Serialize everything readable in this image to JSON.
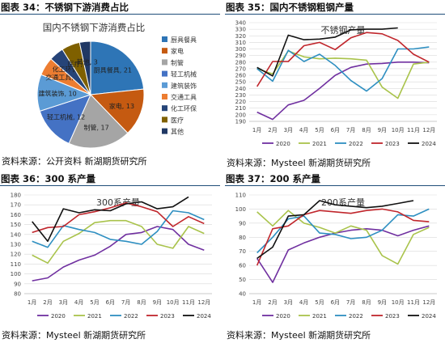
{
  "colors": {
    "c2020": "#7030a0",
    "c2021": "#a9c34b",
    "c2022": "#2e8fc1",
    "c2023": "#c0262c",
    "c2024": "#111111"
  },
  "months": [
    "1月",
    "2月",
    "3月",
    "4月",
    "5月",
    "6月",
    "7月",
    "8月",
    "9月",
    "10月",
    "11月",
    "12月"
  ],
  "panels": [
    {
      "header": "图表 34：不锈钢下游消费占比",
      "source": "资料来源：公开资料   新湖期货研究所"
    },
    {
      "header": "图表 35：国内不锈钢粗钢产量",
      "source": "资料来源：Mysteel 新湖期货研究所"
    },
    {
      "header": "图表 36：300 系产量",
      "source": "资料来源：Mysteel 新湖期货研究所"
    },
    {
      "header": "图表 37：200 系产量",
      "source": "资料来源：Mysteel 新湖期货研究所"
    }
  ],
  "chart_data": [
    {
      "type": "pie",
      "title": "国内不锈钢下游消费占比",
      "slices": [
        {
          "name": "厨具餐具",
          "value": 21,
          "color": "#2e75b6"
        },
        {
          "name": "家电",
          "value": 13,
          "color": "#c55a11"
        },
        {
          "name": "制管",
          "value": 17,
          "color": "#a5a5a5"
        },
        {
          "name": "轻工机械",
          "value": 12,
          "color": "#4472c4"
        },
        {
          "name": "建筑装饰",
          "value": 10,
          "color": "#5b9bd5"
        },
        {
          "name": "交通工具",
          "value": 5,
          "color": "#ed7d31"
        },
        {
          "name": "化工环保",
          "value": 4,
          "color": "#264478"
        },
        {
          "name": "医疗",
          "value": 5,
          "color": "#7f6000"
        },
        {
          "name": "其他",
          "value": 3,
          "color": "#203864"
        }
      ],
      "legend": [
        "厨具餐具",
        "家电",
        "制管",
        "轻工机械",
        "建筑装饰",
        "交通工具",
        "化工环保",
        "医疗",
        "其他"
      ],
      "legend_position": "right"
    },
    {
      "type": "line",
      "title": "不锈钢产量",
      "ylim": [
        190,
        340
      ],
      "yticks": [
        190,
        200,
        210,
        220,
        230,
        240,
        250,
        260,
        270,
        280,
        290,
        300,
        310,
        320,
        330,
        340
      ],
      "grid": true,
      "legend_position": "bottom",
      "series": [
        {
          "name": "2020",
          "values": [
            204,
            193,
            215,
            222,
            240,
            260,
            272,
            277,
            278,
            280,
            280,
            279
          ]
        },
        {
          "name": "2021",
          "values": [
            270,
            262,
            297,
            288,
            285,
            286,
            285,
            283,
            242,
            225,
            277,
            280
          ]
        },
        {
          "name": "2022",
          "values": [
            270,
            251,
            298,
            281,
            292,
            275,
            252,
            236,
            255,
            300,
            300,
            303
          ]
        },
        {
          "name": "2023",
          "values": [
            243,
            281,
            281,
            305,
            310,
            299,
            317,
            325,
            323,
            313,
            292,
            280
          ]
        },
        {
          "name": "2024",
          "values": [
            272,
            259,
            321,
            314,
            315,
            318,
            329,
            330,
            330,
            332,
            null,
            null
          ]
        }
      ]
    },
    {
      "type": "line",
      "title": "300系产量",
      "ylim": [
        80,
        180
      ],
      "yticks": [
        80,
        90,
        100,
        110,
        120,
        130,
        140,
        150,
        160,
        170,
        180
      ],
      "grid": true,
      "legend_position": "bottom",
      "series": [
        {
          "name": "2020",
          "values": [
            93,
            96,
            107,
            114,
            119,
            128,
            140,
            142,
            148,
            145,
            130,
            124
          ]
        },
        {
          "name": "2021",
          "values": [
            119,
            111,
            133,
            141,
            152,
            154,
            154,
            148,
            130,
            126,
            148,
            141
          ]
        },
        {
          "name": "2022",
          "values": [
            133,
            127,
            149,
            145,
            142,
            135,
            133,
            130,
            143,
            164,
            162,
            155
          ]
        },
        {
          "name": "2023",
          "values": [
            142,
            147,
            148,
            160,
            163,
            167,
            172,
            168,
            163,
            148,
            158,
            151
          ]
        },
        {
          "name": "2024",
          "values": [
            153,
            133,
            166,
            162,
            165,
            164,
            171,
            173,
            166,
            168,
            178,
            null
          ]
        }
      ]
    },
    {
      "type": "line",
      "title": "200系产量",
      "ylim": [
        40,
        110
      ],
      "yticks": [
        40,
        50,
        60,
        70,
        80,
        90,
        100,
        110
      ],
      "grid": true,
      "legend_position": "bottom",
      "series": [
        {
          "name": "2020",
          "values": [
            65,
            48,
            71,
            76,
            80,
            83,
            85,
            86,
            85,
            81,
            85,
            88
          ]
        },
        {
          "name": "2021",
          "values": [
            98,
            88,
            99,
            90,
            87,
            83,
            88,
            85,
            67,
            61,
            82,
            87
          ]
        },
        {
          "name": "2022",
          "values": [
            69,
            80,
            93,
            95,
            83,
            82,
            79,
            80,
            85,
            96,
            95,
            100
          ]
        },
        {
          "name": "2023",
          "values": [
            60,
            86,
            88,
            96,
            99,
            98,
            97,
            99,
            100,
            98,
            92,
            91
          ]
        },
        {
          "name": "2024",
          "values": [
            65,
            73,
            95,
            96,
            106,
            103,
            102,
            101,
            102,
            104,
            106,
            null
          ]
        }
      ]
    }
  ]
}
